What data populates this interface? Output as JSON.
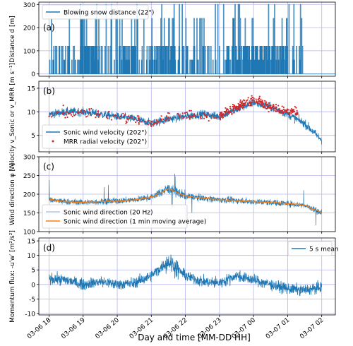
{
  "figure": {
    "xlabel": "Day and time [MM-DD HH]",
    "x_ticks": [
      "03-06 18",
      "03-06 19",
      "03-06 20",
      "03-06 21",
      "03-06 22",
      "03-06 23",
      "03-07 00",
      "03-07 01",
      "03-07 02"
    ],
    "colors": {
      "blue": "#1f77b4",
      "orange": "#ff7f0e",
      "lightblue": "#aec7e8",
      "red": "#d62728",
      "grid": "#b4b4ee"
    }
  },
  "chart_data": [
    {
      "type": "line",
      "panel_label": "(a)",
      "ylabel": "Distance  d  [m]",
      "ylim": [
        -10,
        310
      ],
      "yticks": [
        0,
        100,
        200,
        300
      ],
      "xlim_hours": [
        17.7,
        26.4
      ],
      "grid": true,
      "legend_position": "upper-left",
      "series": [
        {
          "name": "Blowing snow distance (22°)",
          "color": "#1f77b4",
          "style": "spiky",
          "levels": [
            0,
            60,
            120,
            240,
            300
          ],
          "end_hour": 25.5
        }
      ]
    },
    {
      "type": "line",
      "panel_label": "(b)",
      "ylabel": "Velocity  v_Sonic or v_MRR [m s⁻¹]",
      "ylim": [
        1.5,
        16.5
      ],
      "yticks": [
        5,
        10,
        15
      ],
      "grid": true,
      "legend_position": "lower-left",
      "series": [
        {
          "name": "Sonic wind velocity (202°)",
          "color": "#1f77b4",
          "x": [
            18,
            18.5,
            19,
            19.5,
            20,
            20.5,
            21,
            21.5,
            22,
            22.5,
            23,
            23.5,
            24,
            24.5,
            25,
            25.5,
            26
          ],
          "y": [
            9.5,
            10,
            10,
            9.5,
            9,
            8.5,
            7.5,
            8.5,
            9,
            9.5,
            9,
            10.5,
            12,
            11,
            9.5,
            7.5,
            4
          ]
        },
        {
          "name": "MRR radial velocity (202°)",
          "color": "#d62728",
          "kind": "scatter",
          "x": [
            18,
            18.5,
            19,
            19.5,
            20,
            21,
            21.5,
            22,
            23,
            23.5,
            24,
            24.5,
            25
          ],
          "y": [
            9.5,
            10,
            10,
            9.5,
            9,
            7.5,
            9,
            9.5,
            9,
            11,
            12.5,
            11,
            10
          ]
        }
      ]
    },
    {
      "type": "line",
      "panel_label": "(c)",
      "ylabel": "Wind direction  φ [°]",
      "ylim": [
        100,
        300
      ],
      "yticks": [
        100,
        150,
        200,
        250,
        300
      ],
      "grid": true,
      "legend_position": "lower-left",
      "series": [
        {
          "name": "Sonic wind direction (20 Hz)",
          "color": "#1f77b4",
          "x": [
            18,
            18.5,
            19,
            19.5,
            20,
            20.5,
            21,
            21.5,
            22,
            22.5,
            23,
            23.5,
            24,
            24.5,
            25,
            25.5,
            26
          ],
          "y": [
            185,
            180,
            178,
            180,
            182,
            185,
            192,
            215,
            195,
            190,
            185,
            183,
            180,
            178,
            175,
            170,
            150
          ]
        },
        {
          "name": "Sonic wind direction (1 min moving average)",
          "color": "#ff7f0e",
          "x": [
            18,
            18.5,
            19,
            19.5,
            20,
            20.5,
            21,
            21.5,
            22,
            22.5,
            23,
            23.5,
            24,
            24.5,
            25,
            25.5,
            26
          ],
          "y": [
            185,
            180,
            178,
            180,
            182,
            185,
            192,
            215,
            195,
            190,
            185,
            183,
            180,
            178,
            175,
            170,
            150
          ]
        }
      ]
    },
    {
      "type": "line",
      "panel_label": "(d)",
      "ylabel": "Momentum flux: -u′w′ [m²/s²]",
      "ylim": [
        -10.5,
        16
      ],
      "yticks": [
        -10,
        -5,
        0,
        5,
        10,
        15
      ],
      "grid": true,
      "legend_position": "upper-right",
      "series": [
        {
          "name": "5 s mean",
          "color": "#1f77b4",
          "x": [
            18,
            18.5,
            19,
            19.5,
            20,
            20.5,
            21,
            21.5,
            22,
            22.5,
            23,
            23.5,
            24,
            24.5,
            25,
            25.5,
            26
          ],
          "y": [
            2,
            1.5,
            0,
            1,
            0,
            0.5,
            3,
            8,
            3,
            1,
            0.5,
            3,
            1.5,
            0,
            -1.5,
            -2,
            -1
          ]
        }
      ]
    }
  ]
}
